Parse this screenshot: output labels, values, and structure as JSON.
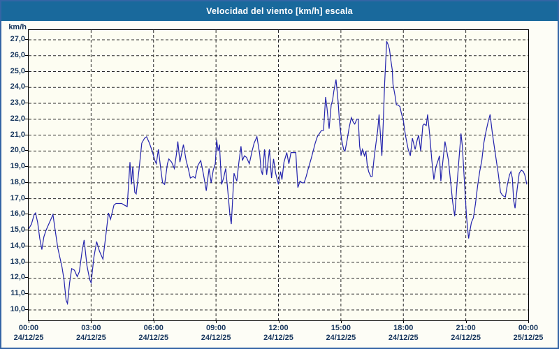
{
  "window": {
    "title": "Velocidad del viento [km/h] escala"
  },
  "colors": {
    "titlebar_bg": "#19699c",
    "title_text": "#ffffff",
    "frame_border": "#3465a5",
    "axis_text": "#17365d",
    "grid_line": "#2a2a2a",
    "plot_border": "#000000",
    "line_color": "#2424ad",
    "plot_bg": "#fdfdf2"
  },
  "chart_data": {
    "type": "line",
    "title": "Velocidad del viento [km/h] escala",
    "ylabel": "km/h",
    "xlabel": "",
    "ylim": [
      10,
      27
    ],
    "grid": true,
    "legend": "none",
    "y_ticks": [
      {
        "value": 27,
        "label": "27,0"
      },
      {
        "value": 26,
        "label": "26,0"
      },
      {
        "value": 25,
        "label": "25,0"
      },
      {
        "value": 24,
        "label": "24,0"
      },
      {
        "value": 23,
        "label": "23,0"
      },
      {
        "value": 22,
        "label": "22,0"
      },
      {
        "value": 21,
        "label": "21,0"
      },
      {
        "value": 20,
        "label": "20,0"
      },
      {
        "value": 19,
        "label": "19,0"
      },
      {
        "value": 18,
        "label": "18,0"
      },
      {
        "value": 17,
        "label": "17,0"
      },
      {
        "value": 16,
        "label": "16,0"
      },
      {
        "value": 15,
        "label": "15,0"
      },
      {
        "value": 14,
        "label": "14,0"
      },
      {
        "value": 13,
        "label": "13,0"
      },
      {
        "value": 12,
        "label": "12,0"
      },
      {
        "value": 11,
        "label": "11,0"
      },
      {
        "value": 10,
        "label": "10,0"
      }
    ],
    "x_range_minutes": [
      0,
      1440
    ],
    "x_ticks": [
      {
        "time": "00:00",
        "date": "24/12/25"
      },
      {
        "time": "03:00",
        "date": "24/12/25"
      },
      {
        "time": "06:00",
        "date": "24/12/25"
      },
      {
        "time": "09:00",
        "date": "24/12/25"
      },
      {
        "time": "12:00",
        "date": "24/12/25"
      },
      {
        "time": "15:00",
        "date": "24/12/25"
      },
      {
        "time": "18:00",
        "date": "24/12/25"
      },
      {
        "time": "21:00",
        "date": "24/12/25"
      },
      {
        "time": "00:00",
        "date": "25/12/25"
      }
    ],
    "series": [
      {
        "name": "Velocidad del viento",
        "points_format": "[minutes_from_00:00, km/h]",
        "points": [
          [
            0,
            15.1
          ],
          [
            8,
            15.4
          ],
          [
            16,
            16.0
          ],
          [
            20,
            16.1
          ],
          [
            26,
            15.5
          ],
          [
            32,
            14.5
          ],
          [
            38,
            13.8
          ],
          [
            44,
            14.6
          ],
          [
            50,
            15.0
          ],
          [
            56,
            15.3
          ],
          [
            62,
            15.6
          ],
          [
            70,
            16.0
          ],
          [
            76,
            15.1
          ],
          [
            84,
            13.9
          ],
          [
            90,
            13.3
          ],
          [
            96,
            12.7
          ],
          [
            102,
            11.9
          ],
          [
            108,
            10.6
          ],
          [
            112,
            10.4
          ],
          [
            118,
            11.7
          ],
          [
            124,
            12.6
          ],
          [
            132,
            12.5
          ],
          [
            140,
            12.1
          ],
          [
            146,
            12.4
          ],
          [
            154,
            13.7
          ],
          [
            160,
            14.4
          ],
          [
            168,
            12.8
          ],
          [
            176,
            11.9
          ],
          [
            180,
            11.7
          ],
          [
            188,
            13.3
          ],
          [
            196,
            14.3
          ],
          [
            204,
            13.7
          ],
          [
            214,
            13.2
          ],
          [
            222,
            14.6
          ],
          [
            230,
            16.1
          ],
          [
            236,
            15.7
          ],
          [
            246,
            16.6
          ],
          [
            252,
            16.7
          ],
          [
            260,
            16.7
          ],
          [
            268,
            16.7
          ],
          [
            276,
            16.6
          ],
          [
            284,
            16.5
          ],
          [
            292,
            19.3
          ],
          [
            296,
            17.9
          ],
          [
            300,
            19.0
          ],
          [
            306,
            17.4
          ],
          [
            310,
            17.3
          ],
          [
            318,
            18.8
          ],
          [
            326,
            20.5
          ],
          [
            334,
            20.8
          ],
          [
            340,
            20.9
          ],
          [
            348,
            20.5
          ],
          [
            356,
            20.0
          ],
          [
            364,
            19.4
          ],
          [
            368,
            19.2
          ],
          [
            374,
            20.1
          ],
          [
            380,
            19.0
          ],
          [
            386,
            18.0
          ],
          [
            392,
            17.9
          ],
          [
            400,
            19.2
          ],
          [
            404,
            19.5
          ],
          [
            412,
            19.3
          ],
          [
            420,
            18.9
          ],
          [
            426,
            19.8
          ],
          [
            430,
            20.6
          ],
          [
            436,
            19.3
          ],
          [
            446,
            20.4
          ],
          [
            454,
            19.4
          ],
          [
            460,
            18.9
          ],
          [
            466,
            18.3
          ],
          [
            474,
            18.4
          ],
          [
            480,
            18.3
          ],
          [
            488,
            19.1
          ],
          [
            496,
            19.4
          ],
          [
            504,
            18.5
          ],
          [
            512,
            17.5
          ],
          [
            520,
            18.9
          ],
          [
            526,
            18.0
          ],
          [
            532,
            18.8
          ],
          [
            538,
            19.2
          ],
          [
            542,
            20.7
          ],
          [
            546,
            20.0
          ],
          [
            550,
            20.4
          ],
          [
            556,
            17.9
          ],
          [
            562,
            18.3
          ],
          [
            568,
            18.9
          ],
          [
            574,
            17.5
          ],
          [
            580,
            16.0
          ],
          [
            584,
            15.4
          ],
          [
            588,
            17.0
          ],
          [
            592,
            18.6
          ],
          [
            600,
            18.1
          ],
          [
            606,
            19.3
          ],
          [
            612,
            20.3
          ],
          [
            616,
            19.4
          ],
          [
            622,
            19.7
          ],
          [
            628,
            19.6
          ],
          [
            636,
            19.2
          ],
          [
            644,
            20.0
          ],
          [
            650,
            20.5
          ],
          [
            658,
            20.9
          ],
          [
            666,
            19.8
          ],
          [
            670,
            18.8
          ],
          [
            674,
            18.5
          ],
          [
            680,
            20.1
          ],
          [
            686,
            18.5
          ],
          [
            694,
            20.1
          ],
          [
            700,
            18.3
          ],
          [
            706,
            19.5
          ],
          [
            712,
            18.6
          ],
          [
            720,
            17.9
          ],
          [
            726,
            18.7
          ],
          [
            730,
            18.2
          ],
          [
            736,
            19.3
          ],
          [
            744,
            19.9
          ],
          [
            750,
            19.2
          ],
          [
            756,
            19.9
          ],
          [
            762,
            19.9
          ],
          [
            770,
            19.9
          ],
          [
            776,
            17.7
          ],
          [
            782,
            18.1
          ],
          [
            788,
            18.0
          ],
          [
            794,
            18.0
          ],
          [
            800,
            18.4
          ],
          [
            806,
            18.9
          ],
          [
            814,
            19.5
          ],
          [
            820,
            20.0
          ],
          [
            826,
            20.5
          ],
          [
            832,
            20.9
          ],
          [
            838,
            21.1
          ],
          [
            844,
            21.3
          ],
          [
            850,
            21.3
          ],
          [
            856,
            23.4
          ],
          [
            860,
            22.7
          ],
          [
            866,
            21.4
          ],
          [
            872,
            22.9
          ],
          [
            876,
            23.2
          ],
          [
            880,
            23.8
          ],
          [
            886,
            24.5
          ],
          [
            892,
            23.1
          ],
          [
            896,
            21.8
          ],
          [
            902,
            20.7
          ],
          [
            908,
            20.1
          ],
          [
            912,
            20.0
          ],
          [
            918,
            20.7
          ],
          [
            924,
            21.5
          ],
          [
            930,
            22.1
          ],
          [
            936,
            21.8
          ],
          [
            940,
            21.7
          ],
          [
            946,
            22.0
          ],
          [
            950,
            22.0
          ],
          [
            954,
            20.3
          ],
          [
            958,
            19.7
          ],
          [
            962,
            20.1
          ],
          [
            968,
            19.7
          ],
          [
            972,
            20.0
          ],
          [
            976,
            19.1
          ],
          [
            980,
            18.7
          ],
          [
            986,
            18.4
          ],
          [
            990,
            18.4
          ],
          [
            996,
            19.6
          ],
          [
            1000,
            20.3
          ],
          [
            1006,
            21.3
          ],
          [
            1010,
            22.3
          ],
          [
            1016,
            20.3
          ],
          [
            1018,
            19.7
          ],
          [
            1022,
            21.8
          ],
          [
            1026,
            24.2
          ],
          [
            1032,
            26.9
          ],
          [
            1036,
            26.7
          ],
          [
            1040,
            26.4
          ],
          [
            1044,
            25.7
          ],
          [
            1048,
            25.1
          ],
          [
            1050,
            24.2
          ],
          [
            1056,
            23.5
          ],
          [
            1060,
            22.9
          ],
          [
            1064,
            22.9
          ],
          [
            1070,
            22.8
          ],
          [
            1074,
            22.4
          ],
          [
            1080,
            21.9
          ],
          [
            1086,
            21.0
          ],
          [
            1094,
            20.1
          ],
          [
            1100,
            19.7
          ],
          [
            1106,
            20.8
          ],
          [
            1114,
            20.1
          ],
          [
            1120,
            20.7
          ],
          [
            1124,
            21.0
          ],
          [
            1130,
            20.0
          ],
          [
            1136,
            21.6
          ],
          [
            1140,
            21.7
          ],
          [
            1146,
            21.6
          ],
          [
            1150,
            22.3
          ],
          [
            1156,
            21.0
          ],
          [
            1162,
            19.4
          ],
          [
            1168,
            18.2
          ],
          [
            1174,
            19.0
          ],
          [
            1180,
            19.4
          ],
          [
            1184,
            19.7
          ],
          [
            1188,
            18.1
          ],
          [
            1194,
            19.4
          ],
          [
            1200,
            20.6
          ],
          [
            1206,
            19.9
          ],
          [
            1210,
            19.4
          ],
          [
            1216,
            18.1
          ],
          [
            1222,
            16.8
          ],
          [
            1228,
            15.9
          ],
          [
            1234,
            17.7
          ],
          [
            1240,
            19.4
          ],
          [
            1246,
            21.1
          ],
          [
            1250,
            20.3
          ],
          [
            1256,
            18.1
          ],
          [
            1262,
            15.9
          ],
          [
            1268,
            14.5
          ],
          [
            1276,
            15.5
          ],
          [
            1282,
            15.8
          ],
          [
            1288,
            16.7
          ],
          [
            1294,
            17.8
          ],
          [
            1300,
            18.7
          ],
          [
            1306,
            19.4
          ],
          [
            1312,
            20.5
          ],
          [
            1318,
            21.2
          ],
          [
            1324,
            21.8
          ],
          [
            1330,
            22.3
          ],
          [
            1336,
            21.2
          ],
          [
            1342,
            20.3
          ],
          [
            1348,
            19.4
          ],
          [
            1354,
            18.5
          ],
          [
            1360,
            17.4
          ],
          [
            1366,
            17.2
          ],
          [
            1374,
            17.1
          ],
          [
            1380,
            17.9
          ],
          [
            1386,
            18.5
          ],
          [
            1390,
            18.7
          ],
          [
            1394,
            18.3
          ],
          [
            1398,
            16.9
          ],
          [
            1402,
            16.4
          ],
          [
            1408,
            17.6
          ],
          [
            1414,
            18.6
          ],
          [
            1420,
            18.8
          ],
          [
            1426,
            18.7
          ],
          [
            1430,
            18.5
          ],
          [
            1434,
            18.1
          ],
          [
            1436,
            17.9
          ]
        ]
      }
    ]
  }
}
